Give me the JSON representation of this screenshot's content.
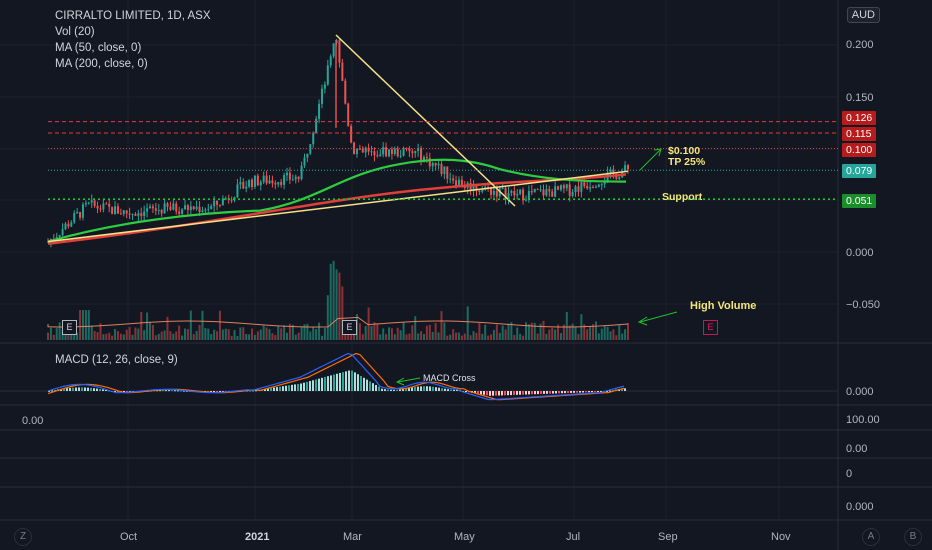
{
  "legend": {
    "symbol": "CIRRALTO LIMITED, 1D, ASX",
    "volume": "Vol (20)",
    "ma_fast": "MA (50, close, 0)",
    "ma_slow": "MA (200, close, 0)",
    "macd": "MACD (12, 26, close, 9)"
  },
  "currency_button": "AUD",
  "price_axis": {
    "ticks": [
      "0.200",
      "0.150",
      "0.000",
      "−0.050"
    ],
    "tags": [
      {
        "label": "0.126",
        "color": "#b71c1c"
      },
      {
        "label": "0.115",
        "color": "#b71c1c"
      },
      {
        "label": "0.100",
        "color": "#b71c1c"
      },
      {
        "label": "0.079",
        "color": "#26a69a"
      },
      {
        "label": "0.051",
        "color": "#1b8e2b"
      }
    ]
  },
  "macd_axis": {
    "tick": "0.000"
  },
  "lower_axis": {
    "left_value": "0.00",
    "ticks": [
      "100.00",
      "0.00",
      "0",
      "0.000"
    ]
  },
  "time_axis": [
    "Oct",
    "2021",
    "Mar",
    "May",
    "Jul",
    "Sep",
    "Nov"
  ],
  "annotations": {
    "target_price": "$0.100",
    "target_pct": "TP 25%",
    "support": "Support",
    "high_volume": "High Volume",
    "macd_cross": "MACD Cross"
  },
  "earnings_badge": "E",
  "corner_buttons": {
    "left": "Z",
    "a": "A",
    "b": "B"
  },
  "colors": {
    "background": "#131722",
    "up_candle": "#26a69a",
    "down_candle": "#ef5350",
    "ma_fast": "#2ecc40",
    "ma_slow": "#e0403a",
    "trendline": "#f7e08a",
    "support_line": "#22c02a",
    "resistance_lines": "#e53935",
    "macd_line": "#2962ff",
    "signal_line": "#ff6d00"
  },
  "chart_data": {
    "type": "candlestick",
    "title": "CIRRALTO LIMITED, 1D, ASX",
    "y_unit": "AUD",
    "ylim": [
      -0.06,
      0.21
    ],
    "levels": {
      "resistance": [
        0.126,
        0.115,
        0.1
      ],
      "last_price": 0.079,
      "support": 0.051
    },
    "close_path": [
      {
        "x": "Aug",
        "y": 0.01
      },
      {
        "x": "Sep",
        "y": 0.045
      },
      {
        "x": "Oct",
        "y": 0.038
      },
      {
        "x": "Nov",
        "y": 0.042
      },
      {
        "x": "Dec",
        "y": 0.043
      },
      {
        "x": "Jan",
        "y": 0.068
      },
      {
        "x": "Feb",
        "y": 0.072
      },
      {
        "x": "late Feb peak",
        "y": 0.205
      },
      {
        "x": "Mar",
        "y": 0.1
      },
      {
        "x": "Apr",
        "y": 0.095
      },
      {
        "x": "May",
        "y": 0.065
      },
      {
        "x": "Jun",
        "y": 0.055
      },
      {
        "x": "Jul",
        "y": 0.06
      },
      {
        "x": "late Jul",
        "y": 0.079
      }
    ]
  }
}
